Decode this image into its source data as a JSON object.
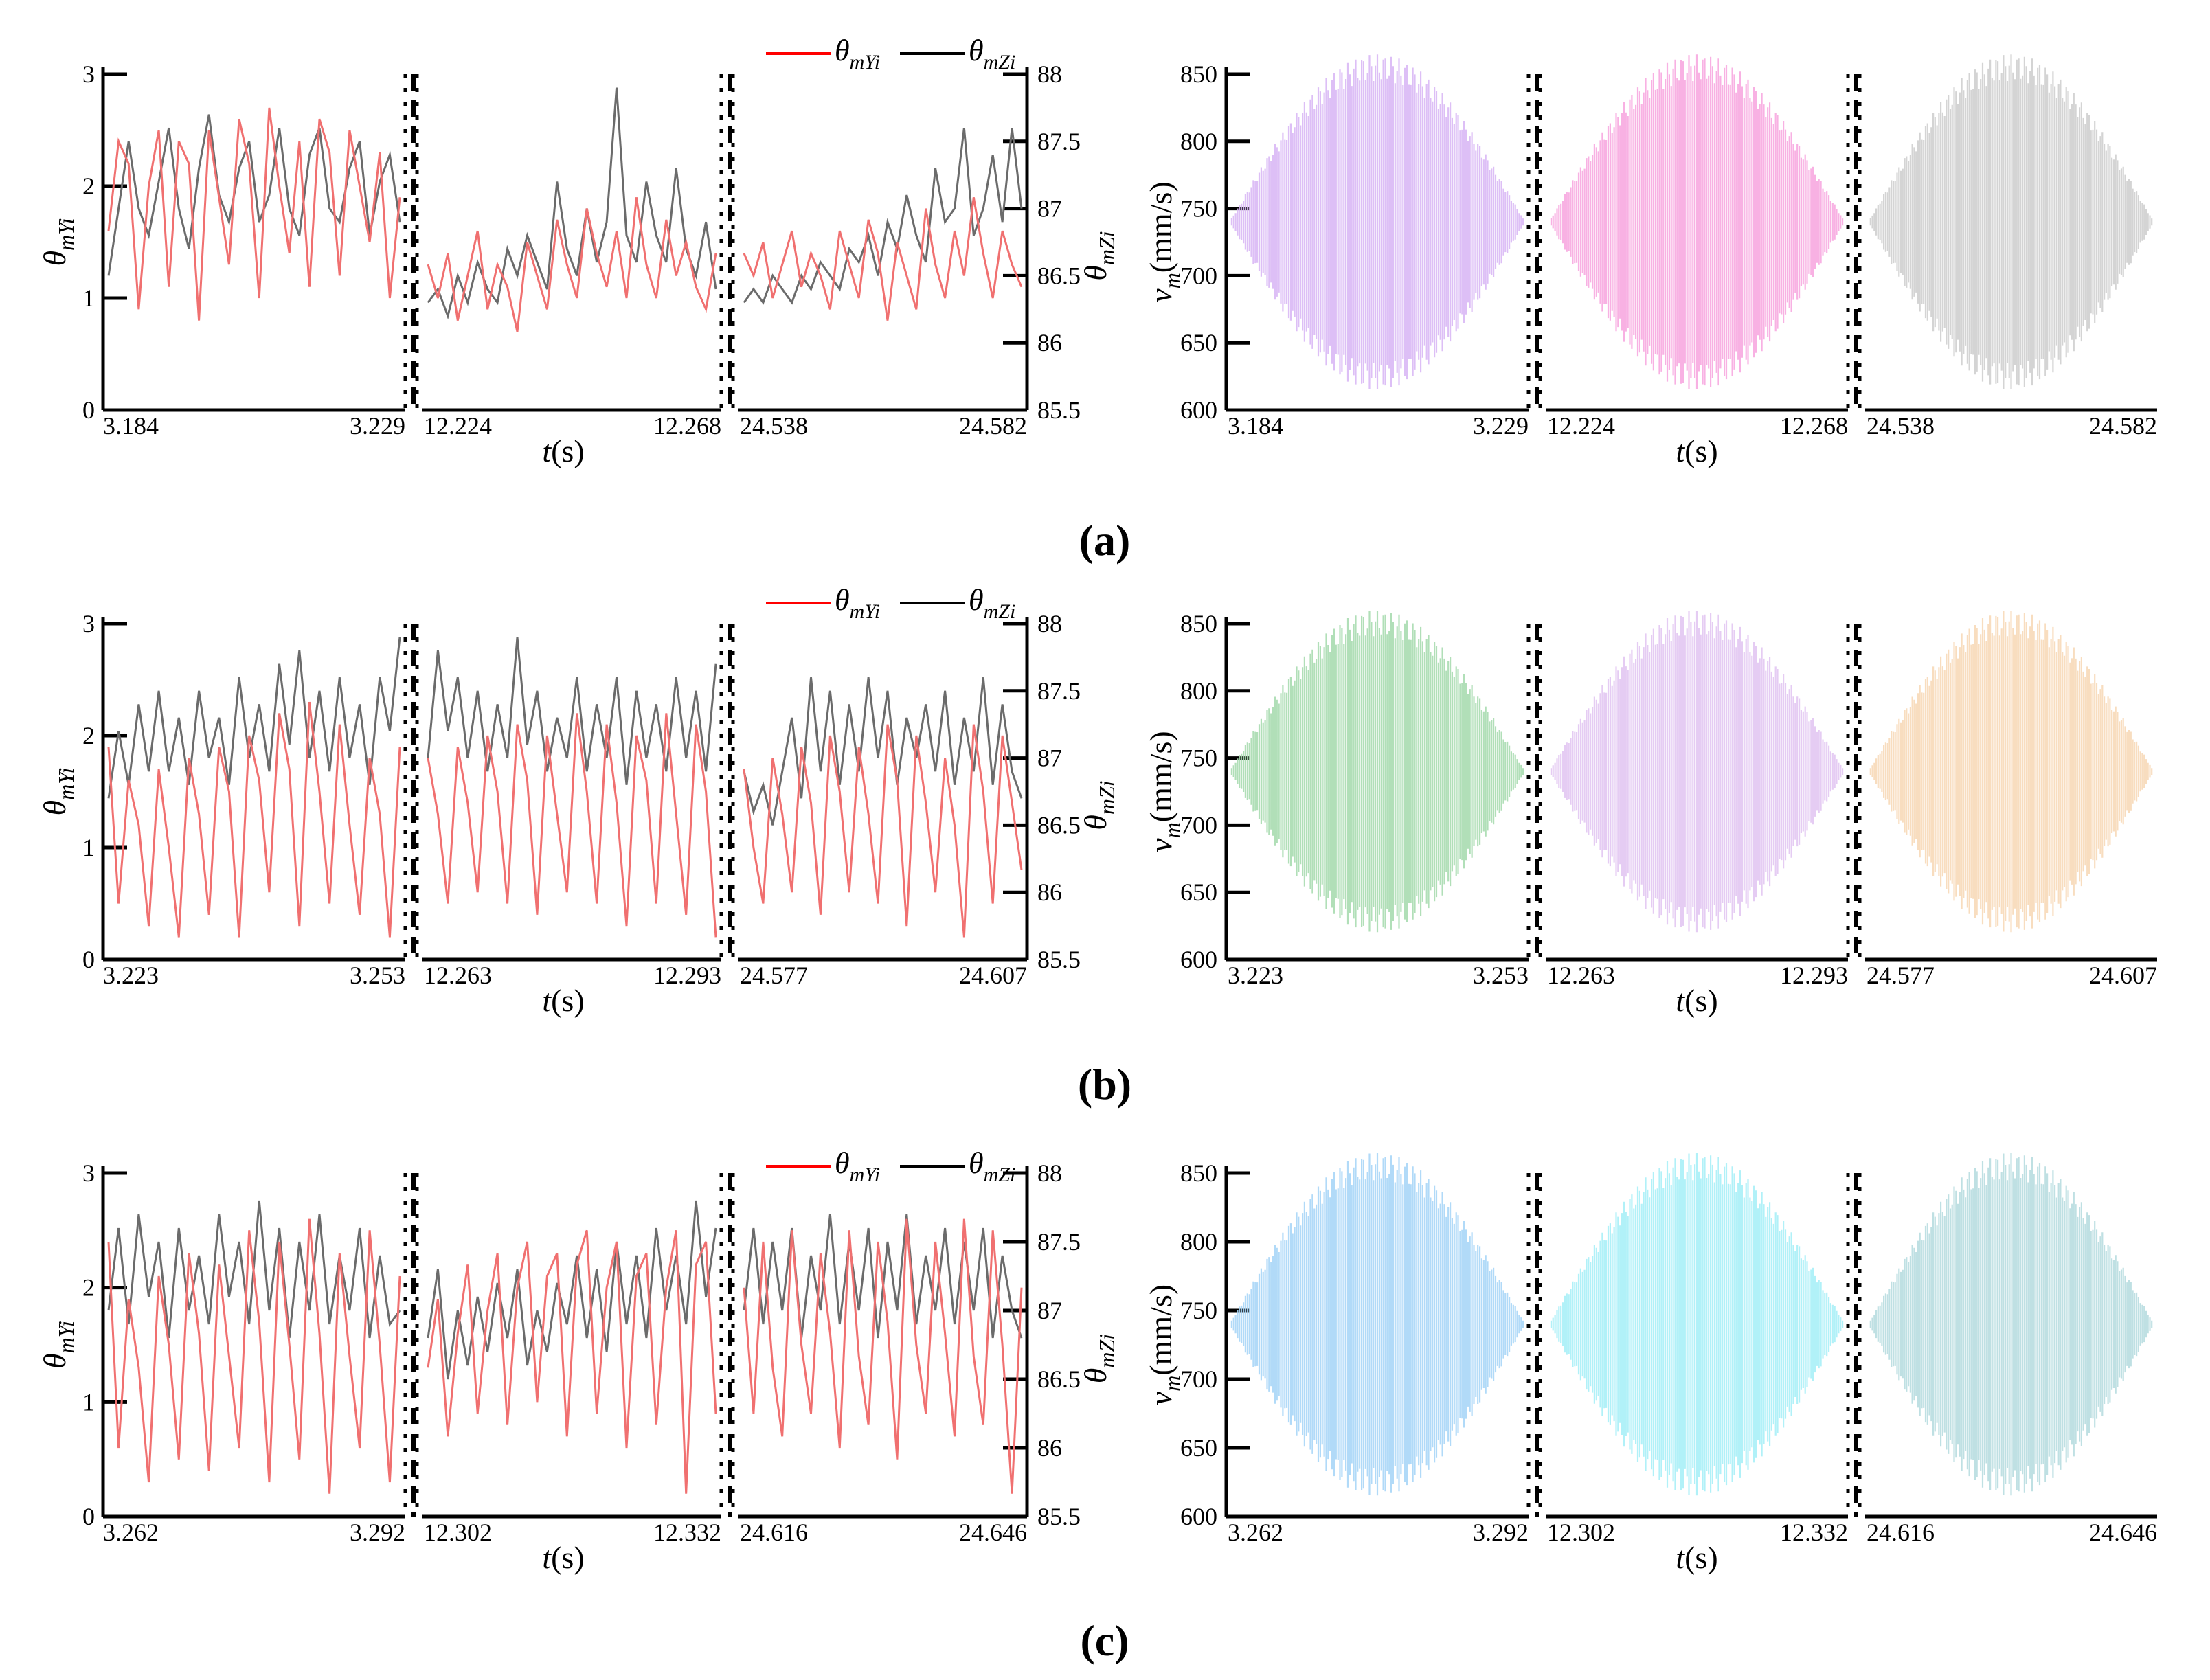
{
  "chart_data": [
    {
      "panel": "(a)",
      "side": "left",
      "type": "line",
      "ylabel_left": {
        "base": "θ",
        "sub": "mYi"
      },
      "ylabel_right": {
        "base": "θ",
        "sub": "mZi"
      },
      "xlabel": {
        "var": "t",
        "unit": "(s)"
      },
      "legend": [
        {
          "base": "θ",
          "sub": "mYi",
          "color": "#ff0000"
        },
        {
          "base": "θ",
          "sub": "mZi",
          "color": "#000000"
        }
      ],
      "ylim": [
        0,
        3
      ],
      "yticks": [
        "0",
        "1",
        "2",
        "3"
      ],
      "ylim_right": [
        85.5,
        88
      ],
      "yticks_right": [
        "85.5",
        "86",
        "86.5",
        "87",
        "87.5",
        "88"
      ],
      "segments": [
        {
          "x_start": "3.184",
          "x_end": "3.229",
          "y_red": [
            1.6,
            2.4,
            2.2,
            0.9,
            2.0,
            2.5,
            1.1,
            2.4,
            2.2,
            0.8,
            2.5,
            1.9,
            1.3,
            2.6,
            2.2,
            1.0,
            2.7,
            2.0,
            1.4,
            2.4,
            1.1,
            2.6,
            2.3,
            1.2,
            2.5,
            2.0,
            1.5,
            2.3,
            1.0,
            1.9
          ],
          "y_grey": [
            86.5,
            87.0,
            87.5,
            87.0,
            86.8,
            87.2,
            87.6,
            87.0,
            86.7,
            87.3,
            87.7,
            87.1,
            86.9,
            87.3,
            87.5,
            86.9,
            87.1,
            87.6,
            87.0,
            86.8,
            87.4,
            87.6,
            87.0,
            86.9,
            87.3,
            87.5,
            86.8,
            87.2,
            87.4,
            86.9
          ]
        },
        {
          "x_start": "12.224",
          "x_end": "12.268",
          "y_red": [
            1.3,
            1.0,
            1.4,
            0.8,
            1.2,
            1.6,
            0.9,
            1.3,
            1.1,
            0.7,
            1.5,
            1.2,
            0.9,
            1.7,
            1.3,
            1.0,
            1.8,
            1.4,
            1.1,
            1.6,
            1.0,
            1.9,
            1.3,
            1.0,
            1.7,
            1.2,
            1.5,
            1.1,
            0.9,
            1.4
          ],
          "y_grey": [
            86.3,
            86.4,
            86.2,
            86.5,
            86.3,
            86.6,
            86.4,
            86.3,
            86.7,
            86.5,
            86.8,
            86.6,
            86.4,
            87.2,
            86.7,
            86.5,
            87.0,
            86.6,
            86.9,
            87.9,
            86.8,
            86.6,
            87.2,
            86.8,
            86.6,
            87.3,
            86.7,
            86.5,
            86.9,
            86.4
          ]
        },
        {
          "x_start": "24.538",
          "x_end": "24.582",
          "y_red": [
            1.4,
            1.2,
            1.5,
            1.0,
            1.3,
            1.6,
            1.1,
            1.4,
            1.2,
            0.9,
            1.6,
            1.3,
            1.0,
            1.7,
            1.4,
            0.8,
            1.5,
            1.2,
            0.9,
            1.8,
            1.3,
            1.0,
            1.6,
            1.2,
            1.9,
            1.4,
            1.0,
            1.6,
            1.3,
            1.1
          ],
          "y_grey": [
            86.3,
            86.4,
            86.3,
            86.5,
            86.4,
            86.3,
            86.5,
            86.4,
            86.6,
            86.5,
            86.4,
            86.7,
            86.6,
            86.8,
            86.5,
            86.9,
            86.7,
            87.1,
            86.8,
            86.6,
            87.3,
            86.9,
            87.0,
            87.6,
            86.8,
            87.0,
            87.4,
            86.9,
            87.6,
            87.0
          ]
        }
      ]
    },
    {
      "panel": "(a)",
      "side": "right",
      "type": "area",
      "ylabel": {
        "base": "v",
        "sub": "m",
        "unit": "(mm/s)"
      },
      "xlabel": {
        "var": "t",
        "unit": "(s)"
      },
      "ylim": [
        600,
        850
      ],
      "yticks": [
        "600",
        "650",
        "700",
        "750",
        "800",
        "850"
      ],
      "segments": [
        {
          "x_start": "3.184",
          "x_end": "3.229",
          "center": 740,
          "amplitude": 125,
          "color": "#d9b8f5"
        },
        {
          "x_start": "12.224",
          "x_end": "12.268",
          "center": 740,
          "amplitude": 125,
          "color": "#f7a8e0"
        },
        {
          "x_start": "24.538",
          "x_end": "24.582",
          "center": 740,
          "amplitude": 125,
          "color": "#cfcfcf"
        }
      ]
    },
    {
      "panel": "(b)",
      "side": "left",
      "type": "line",
      "ylabel_left": {
        "base": "θ",
        "sub": "mYi"
      },
      "ylabel_right": {
        "base": "θ",
        "sub": "mZi"
      },
      "xlabel": {
        "var": "t",
        "unit": "(s)"
      },
      "legend": [
        {
          "base": "θ",
          "sub": "mYi",
          "color": "#ff0000"
        },
        {
          "base": "θ",
          "sub": "mZi",
          "color": "#000000"
        }
      ],
      "ylim": [
        0,
        3
      ],
      "yticks": [
        "0",
        "1",
        "2",
        "3"
      ],
      "ylim_right": [
        85.5,
        88
      ],
      "yticks_right": [
        "85.5",
        "86",
        "86.5",
        "87",
        "87.5",
        "88"
      ],
      "segments": [
        {
          "x_start": "3.223",
          "x_end": "3.253",
          "y_red": [
            1.9,
            0.5,
            1.6,
            1.2,
            0.3,
            1.7,
            1.0,
            0.2,
            1.8,
            1.3,
            0.4,
            1.9,
            1.5,
            0.2,
            2.0,
            1.6,
            0.6,
            2.2,
            1.7,
            0.3,
            2.3,
            1.5,
            0.5,
            2.1,
            1.2,
            0.4,
            1.8,
            1.3,
            0.2,
            1.9
          ],
          "y_grey": [
            86.7,
            87.2,
            86.8,
            87.4,
            86.9,
            87.5,
            86.9,
            87.3,
            86.8,
            87.5,
            87.0,
            87.3,
            86.8,
            87.6,
            87.0,
            87.4,
            86.9,
            87.7,
            87.1,
            87.8,
            87.0,
            87.5,
            86.9,
            87.6,
            87.0,
            87.4,
            86.8,
            87.6,
            87.2,
            87.9
          ]
        },
        {
          "x_start": "12.263",
          "x_end": "12.293",
          "y_red": [
            1.8,
            1.3,
            0.5,
            1.9,
            1.4,
            0.6,
            2.0,
            1.5,
            0.5,
            2.1,
            1.6,
            0.4,
            2.0,
            1.3,
            0.6,
            2.2,
            1.5,
            0.5,
            2.1,
            1.4,
            0.3,
            2.0,
            1.6,
            0.5,
            2.2,
            1.3,
            0.4,
            2.1,
            1.5,
            0.2
          ],
          "y_grey": [
            87.0,
            87.8,
            87.2,
            87.6,
            87.0,
            87.5,
            86.9,
            87.4,
            87.0,
            87.9,
            87.1,
            87.5,
            86.9,
            87.3,
            87.0,
            87.6,
            86.9,
            87.4,
            87.0,
            87.6,
            86.8,
            87.5,
            87.0,
            87.4,
            86.9,
            87.6,
            87.0,
            87.5,
            86.9,
            87.7
          ]
        },
        {
          "x_start": "24.577",
          "x_end": "24.607",
          "y_red": [
            1.7,
            1.0,
            0.5,
            1.8,
            1.3,
            0.6,
            1.9,
            1.4,
            0.4,
            2.0,
            1.5,
            0.6,
            1.9,
            1.3,
            0.5,
            2.1,
            1.6,
            0.3,
            2.0,
            1.4,
            0.6,
            1.8,
            1.2,
            0.2,
            2.1,
            1.5,
            0.5,
            2.0,
            1.4,
            0.8
          ],
          "y_grey": [
            86.9,
            86.6,
            86.8,
            86.5,
            86.9,
            87.3,
            86.7,
            87.6,
            86.9,
            87.5,
            86.8,
            87.4,
            86.9,
            87.6,
            87.0,
            87.5,
            86.8,
            87.3,
            87.0,
            87.4,
            86.9,
            87.5,
            86.8,
            87.3,
            86.9,
            87.6,
            86.8,
            87.4,
            86.9,
            86.7
          ]
        }
      ]
    },
    {
      "panel": "(b)",
      "side": "right",
      "type": "area",
      "ylabel": {
        "base": "v",
        "sub": "m",
        "unit": "(mm/s)"
      },
      "xlabel": {
        "var": "t",
        "unit": "(s)"
      },
      "ylim": [
        600,
        850
      ],
      "yticks": [
        "600",
        "650",
        "700",
        "750",
        "800",
        "850"
      ],
      "segments": [
        {
          "x_start": "3.223",
          "x_end": "3.253",
          "center": 740,
          "amplitude": 120,
          "color": "#a9dcb0"
        },
        {
          "x_start": "12.263",
          "x_end": "12.293",
          "center": 740,
          "amplitude": 120,
          "color": "#e2c6f2"
        },
        {
          "x_start": "24.577",
          "x_end": "24.607",
          "center": 740,
          "amplitude": 120,
          "color": "#f7d9b8"
        }
      ]
    },
    {
      "panel": "(c)",
      "side": "left",
      "type": "line",
      "ylabel_left": {
        "base": "θ",
        "sub": "mYi"
      },
      "ylabel_right": {
        "base": "θ",
        "sub": "mZi"
      },
      "xlabel": {
        "var": "t",
        "unit": "(s)"
      },
      "legend": [
        {
          "base": "θ",
          "sub": "mYi",
          "color": "#ff0000"
        },
        {
          "base": "θ",
          "sub": "mZi",
          "color": "#000000"
        }
      ],
      "ylim": [
        0,
        3
      ],
      "yticks": [
        "0",
        "1",
        "2",
        "3"
      ],
      "ylim_right": [
        85.5,
        88
      ],
      "yticks_right": [
        "85.5",
        "86",
        "86.5",
        "87",
        "87.5",
        "88"
      ],
      "segments": [
        {
          "x_start": "3.262",
          "x_end": "3.292",
          "y_red": [
            2.4,
            0.6,
            1.9,
            1.3,
            0.3,
            2.1,
            1.5,
            0.5,
            2.3,
            1.6,
            0.4,
            2.2,
            1.4,
            0.6,
            2.5,
            1.7,
            0.3,
            2.4,
            1.5,
            0.5,
            2.6,
            1.6,
            0.2,
            2.3,
            1.4,
            0.6,
            2.5,
            1.5,
            0.3,
            2.1
          ],
          "y_grey": [
            87.0,
            87.6,
            86.9,
            87.7,
            87.1,
            87.5,
            86.8,
            87.6,
            87.0,
            87.4,
            86.9,
            87.7,
            87.1,
            87.5,
            86.9,
            87.8,
            87.0,
            87.6,
            86.8,
            87.5,
            87.0,
            87.7,
            86.9,
            87.4,
            87.0,
            87.6,
            86.8,
            87.4,
            86.9,
            87.0
          ]
        },
        {
          "x_start": "12.302",
          "x_end": "12.332",
          "y_red": [
            1.3,
            1.9,
            0.7,
            1.6,
            2.2,
            0.9,
            1.8,
            2.3,
            0.8,
            2.0,
            2.4,
            1.0,
            2.1,
            2.3,
            0.7,
            2.2,
            2.5,
            0.9,
            2.0,
            2.4,
            0.6,
            2.1,
            2.3,
            0.8,
            2.0,
            2.5,
            0.2,
            2.2,
            2.4,
            0.9
          ],
          "y_grey": [
            86.8,
            87.3,
            86.5,
            87.0,
            86.6,
            87.1,
            86.7,
            87.2,
            86.8,
            87.3,
            86.6,
            87.0,
            86.7,
            87.2,
            86.9,
            87.4,
            86.8,
            87.3,
            86.7,
            87.5,
            86.9,
            87.4,
            86.8,
            87.6,
            87.0,
            87.4,
            86.9,
            87.8,
            87.1,
            87.6
          ]
        },
        {
          "x_start": "24.616",
          "x_end": "24.646",
          "y_red": [
            2.0,
            0.9,
            2.4,
            1.3,
            0.7,
            2.5,
            1.5,
            0.9,
            2.3,
            1.6,
            0.6,
            2.5,
            1.4,
            0.8,
            2.4,
            1.7,
            0.5,
            2.6,
            1.5,
            0.9,
            2.4,
            1.6,
            0.7,
            2.6,
            1.4,
            0.8,
            2.5,
            1.5,
            0.2,
            2.0
          ],
          "y_grey": [
            87.0,
            87.6,
            86.9,
            87.5,
            87.0,
            87.6,
            86.8,
            87.4,
            87.0,
            87.7,
            86.9,
            87.5,
            87.0,
            87.6,
            86.8,
            87.5,
            87.0,
            87.7,
            86.9,
            87.4,
            87.0,
            87.6,
            86.9,
            87.5,
            87.0,
            87.6,
            86.8,
            87.4,
            87.0,
            86.8
          ]
        }
      ]
    },
    {
      "panel": "(c)",
      "side": "right",
      "type": "area",
      "ylabel": {
        "base": "v",
        "sub": "m",
        "unit": "(mm/s)"
      },
      "xlabel": {
        "var": "t",
        "unit": "(s)"
      },
      "ylim": [
        600,
        850
      ],
      "yticks": [
        "600",
        "650",
        "700",
        "750",
        "800",
        "850"
      ],
      "segments": [
        {
          "x_start": "3.262",
          "x_end": "3.292",
          "center": 740,
          "amplitude": 125,
          "color": "#a9d6f7"
        },
        {
          "x_start": "12.302",
          "x_end": "12.332",
          "center": 740,
          "amplitude": 125,
          "color": "#a8f0f7"
        },
        {
          "x_start": "24.616",
          "x_end": "24.646",
          "center": 740,
          "amplitude": 125,
          "color": "#b8dde0"
        }
      ]
    }
  ],
  "panel_labels": [
    "(a)",
    "(b)",
    "(c)"
  ]
}
